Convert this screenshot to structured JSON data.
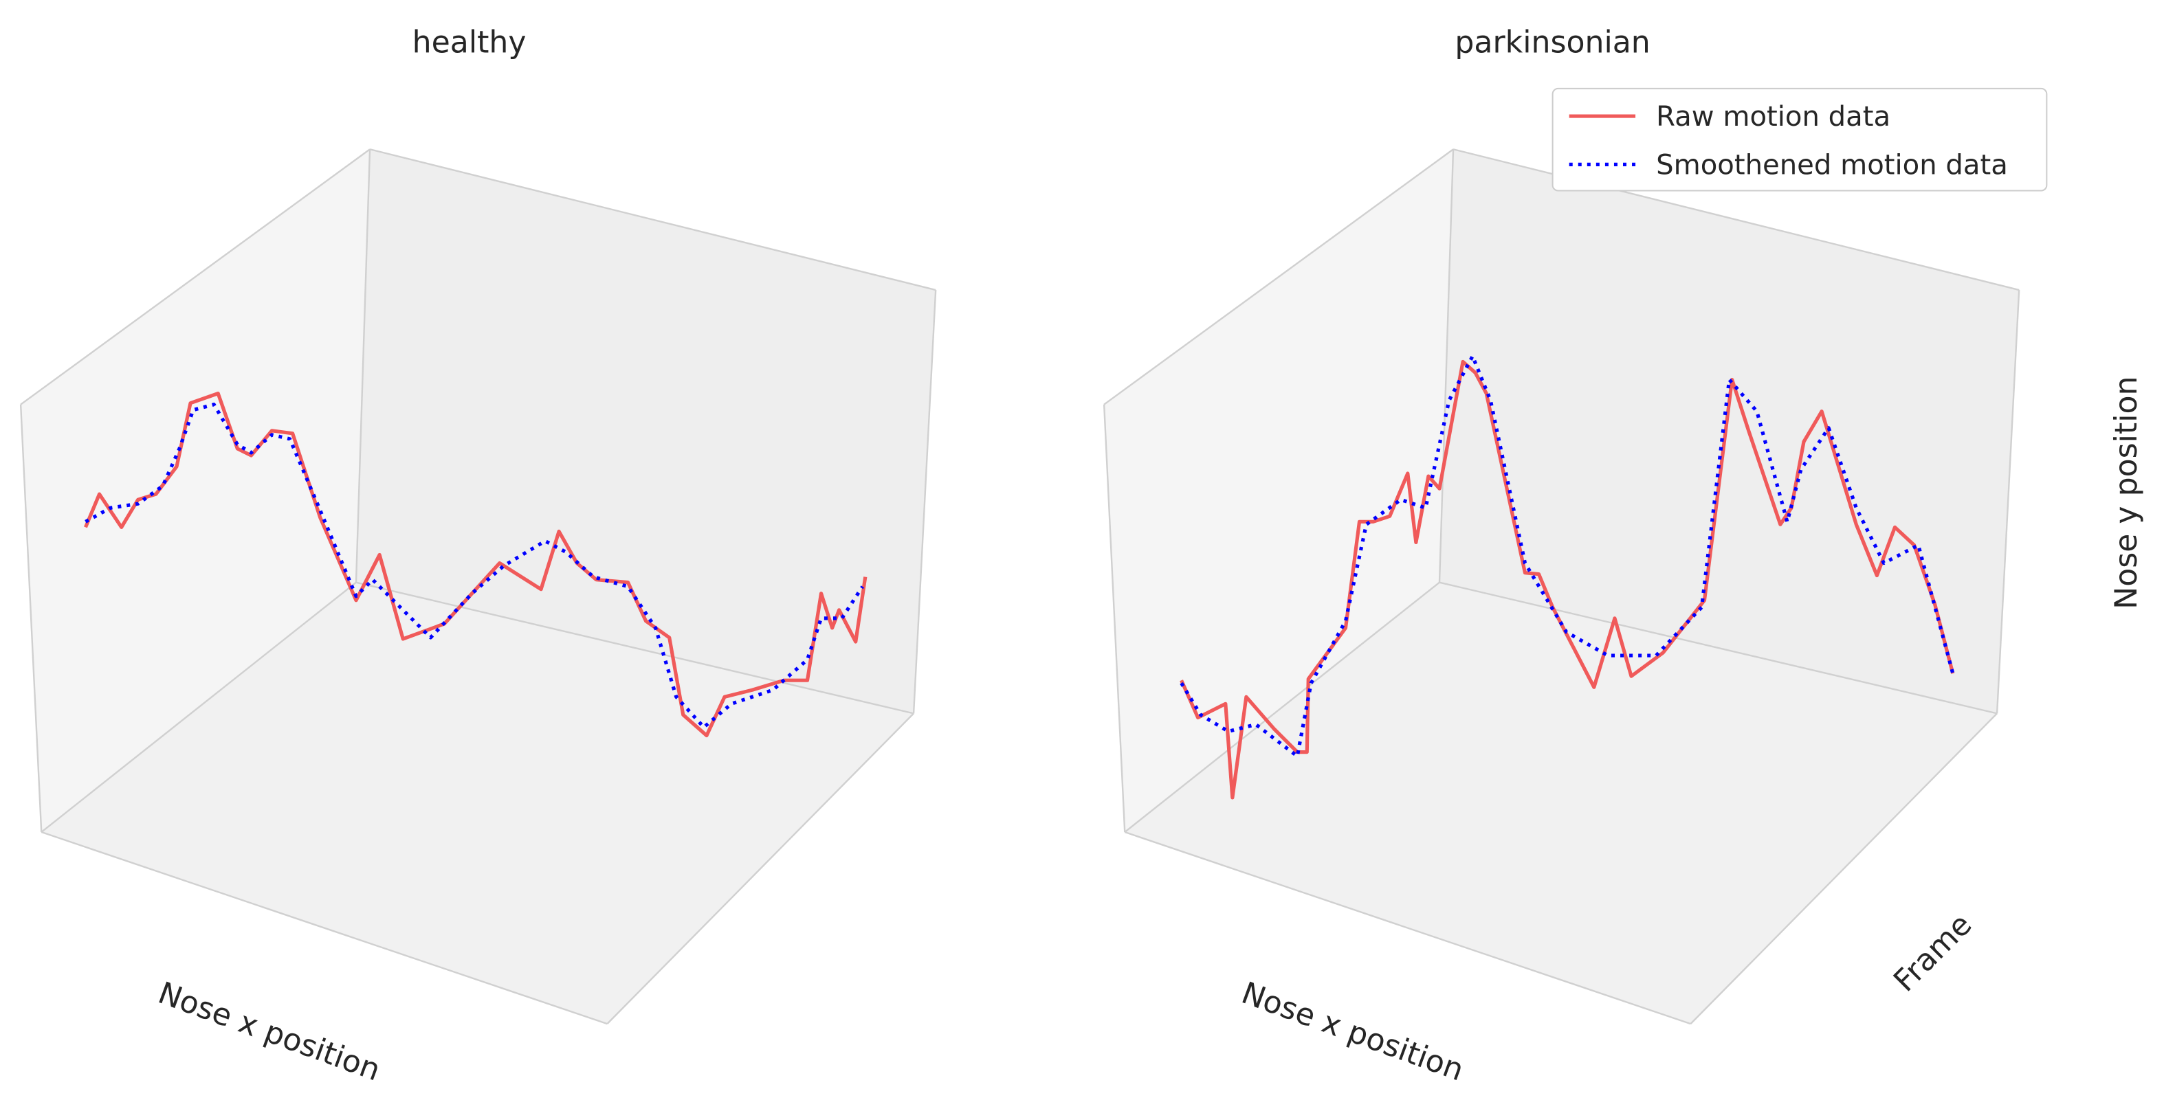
{
  "chart_data": [
    {
      "type": "line3d",
      "title": "healthy",
      "xlabel": "Nose x position",
      "xlim": [
        0,
        600
      ],
      "ylim": [
        0,
        400
      ],
      "series": [
        {
          "name": "Raw motion data",
          "color": "#f05a5a",
          "style": "solid",
          "x": [
            12,
            22,
            38,
            50,
            63,
            78,
            88,
            108,
            122,
            132,
            147,
            162,
            182,
            208,
            225,
            242,
            272,
            312,
            342,
            355,
            368,
            382,
            405,
            418,
            435,
            445,
            462,
            475,
            495,
            518,
            535,
            545,
            553,
            558,
            570,
            577
          ],
          "values": [
            218,
            242,
            218,
            238,
            242,
            262,
            308,
            315,
            275,
            270,
            288,
            286,
            225,
            165,
            198,
            137,
            148,
            192,
            173,
            215,
            192,
            180,
            178,
            150,
            138,
            82,
            67,
            95,
            100,
            107,
            107,
            170,
            145,
            158,
            135,
            182
          ]
        },
        {
          "name": "Smoothened motion data",
          "color": "#0000ff",
          "style": "dotted",
          "x": [
            12,
            30,
            50,
            68,
            80,
            90,
            105,
            122,
            132,
            147,
            160,
            180,
            208,
            220,
            240,
            262,
            292,
            315,
            345,
            360,
            380,
            405,
            425,
            440,
            460,
            480,
            510,
            535,
            545,
            560,
            575
          ],
          "values": [
            222,
            232,
            235,
            248,
            275,
            303,
            307,
            278,
            272,
            285,
            282,
            235,
            168,
            180,
            160,
            138,
            170,
            190,
            208,
            200,
            182,
            175,
            145,
            95,
            73,
            90,
            100,
            122,
            152,
            152,
            175
          ]
        }
      ]
    },
    {
      "type": "line3d",
      "title": "parkinsonian",
      "xlabel": "Nose x position",
      "ylabel": "Frame",
      "zlabel": "Nose y position",
      "xlim": [
        0,
        600
      ],
      "ylim": [
        0,
        400
      ],
      "legend": "upper right",
      "series": [
        {
          "name": "Raw motion data",
          "color": "#f05a5a",
          "style": "solid",
          "x": [
            21,
            33,
            53,
            58,
            68,
            88,
            105,
            112,
            113,
            140,
            150,
            160,
            172,
            185,
            191,
            200,
            208,
            225,
            234,
            242,
            270,
            280,
            290,
            320,
            335,
            347,
            370,
            400,
            420,
            432,
            455,
            463,
            472,
            485,
            510,
            525,
            538,
            552,
            567,
            580
          ],
          "values": [
            107,
            80,
            90,
            22,
            95,
            72,
            55,
            55,
            108,
            145,
            222,
            222,
            226,
            257,
            207,
            255,
            246,
            338,
            330,
            315,
            185,
            184,
            160,
            102,
            152,
            110,
            127,
            165,
            325,
            288,
            220,
            232,
            280,
            302,
            220,
            183,
            218,
            205,
            162,
            112
          ]
        },
        {
          "name": "Smoothened motion data",
          "color": "#0000ff",
          "style": "dotted",
          "x": [
            21,
            35,
            55,
            75,
            105,
            115,
            140,
            155,
            180,
            198,
            215,
            232,
            245,
            270,
            300,
            330,
            365,
            398,
            418,
            438,
            460,
            470,
            490,
            510,
            530,
            555,
            580
          ],
          "values": [
            105,
            82,
            70,
            75,
            52,
            105,
            150,
            220,
            238,
            232,
            310,
            342,
            310,
            192,
            142,
            125,
            125,
            160,
            325,
            302,
            222,
            260,
            290,
            232,
            192,
            205,
            112
          ]
        }
      ]
    }
  ]
}
